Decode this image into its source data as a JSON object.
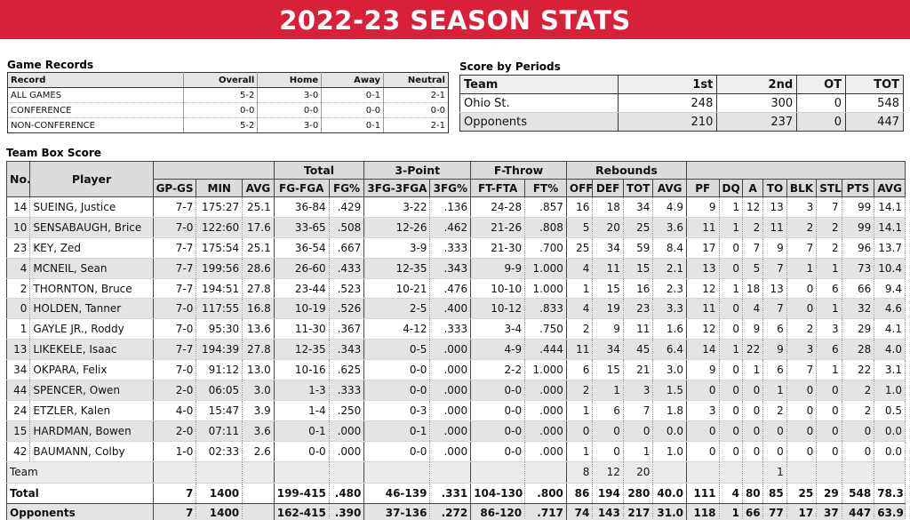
{
  "banner": {
    "title": "2022-23 SEASON STATS"
  },
  "game_records": {
    "title": "Game Records",
    "headers": [
      "Record",
      "Overall",
      "Home",
      "Away",
      "Neutral"
    ],
    "rows": [
      [
        "ALL GAMES",
        "5-2",
        "3-0",
        "0-1",
        "2-1"
      ],
      [
        "CONFERENCE",
        "0-0",
        "0-0",
        "0-0",
        "0-0"
      ],
      [
        "NON-CONFERENCE",
        "5-2",
        "3-0",
        "0-1",
        "2-1"
      ]
    ]
  },
  "score_by_periods": {
    "title": "Score by Periods",
    "headers": [
      "Team",
      "1st",
      "2nd",
      "OT",
      "TOT"
    ],
    "rows": [
      [
        "Ohio St.",
        "248",
        "300",
        "0",
        "548"
      ],
      [
        "Opponents",
        "210",
        "237",
        "0",
        "447"
      ]
    ]
  },
  "box_score": {
    "title": "Team Box Score",
    "group_headers": {
      "no": "No.",
      "player": "Player",
      "total": "Total",
      "three": "3-Point",
      "ft": "F-Throw",
      "reb": "Rebounds"
    },
    "col_headers": [
      "GP-GS",
      "MIN",
      "AVG",
      "FG-FGA",
      "FG%",
      "3FG-3FGA",
      "3FG%",
      "FT-FTA",
      "FT%",
      "OFF",
      "DEF",
      "TOT",
      "AVG",
      "PF",
      "DQ",
      "A",
      "TO",
      "BLK",
      "STL",
      "PTS",
      "AVG"
    ],
    "players": [
      [
        "14",
        "SUEING, Justice",
        "7-7",
        "175:27",
        "25.1",
        "36-84",
        ".429",
        "3-22",
        ".136",
        "24-28",
        ".857",
        "16",
        "18",
        "34",
        "4.9",
        "9",
        "1",
        "12",
        "13",
        "3",
        "7",
        "99",
        "14.1"
      ],
      [
        "10",
        "SENSABAUGH, Brice",
        "7-0",
        "122:60",
        "17.6",
        "33-65",
        ".508",
        "12-26",
        ".462",
        "21-26",
        ".808",
        "5",
        "20",
        "25",
        "3.6",
        "11",
        "1",
        "2",
        "11",
        "2",
        "2",
        "99",
        "14.1"
      ],
      [
        "23",
        "KEY, Zed",
        "7-7",
        "175:54",
        "25.1",
        "36-54",
        ".667",
        "3-9",
        ".333",
        "21-30",
        ".700",
        "25",
        "34",
        "59",
        "8.4",
        "17",
        "0",
        "7",
        "9",
        "7",
        "2",
        "96",
        "13.7"
      ],
      [
        "4",
        "MCNEIL, Sean",
        "7-7",
        "199:56",
        "28.6",
        "26-60",
        ".433",
        "12-35",
        ".343",
        "9-9",
        "1.000",
        "4",
        "11",
        "15",
        "2.1",
        "13",
        "0",
        "5",
        "7",
        "1",
        "1",
        "73",
        "10.4"
      ],
      [
        "2",
        "THORNTON, Bruce",
        "7-7",
        "194:51",
        "27.8",
        "23-44",
        ".523",
        "10-21",
        ".476",
        "10-10",
        "1.000",
        "1",
        "15",
        "16",
        "2.3",
        "12",
        "1",
        "18",
        "13",
        "0",
        "6",
        "66",
        "9.4"
      ],
      [
        "0",
        "HOLDEN, Tanner",
        "7-0",
        "117:55",
        "16.8",
        "10-19",
        ".526",
        "2-5",
        ".400",
        "10-12",
        ".833",
        "4",
        "19",
        "23",
        "3.3",
        "11",
        "0",
        "4",
        "7",
        "0",
        "1",
        "32",
        "4.6"
      ],
      [
        "1",
        "GAYLE JR., Roddy",
        "7-0",
        "95:30",
        "13.6",
        "11-30",
        ".367",
        "4-12",
        ".333",
        "3-4",
        ".750",
        "2",
        "9",
        "11",
        "1.6",
        "12",
        "0",
        "9",
        "6",
        "2",
        "3",
        "29",
        "4.1"
      ],
      [
        "13",
        "LIKEKELE, Isaac",
        "7-7",
        "194:39",
        "27.8",
        "12-35",
        ".343",
        "0-5",
        ".000",
        "4-9",
        ".444",
        "11",
        "34",
        "45",
        "6.4",
        "14",
        "1",
        "22",
        "9",
        "3",
        "6",
        "28",
        "4.0"
      ],
      [
        "34",
        "OKPARA, Felix",
        "7-0",
        "91:12",
        "13.0",
        "10-16",
        ".625",
        "0-0",
        ".000",
        "2-2",
        "1.000",
        "6",
        "15",
        "21",
        "3.0",
        "9",
        "0",
        "1",
        "6",
        "7",
        "1",
        "22",
        "3.1"
      ],
      [
        "44",
        "SPENCER, Owen",
        "2-0",
        "06:05",
        "3.0",
        "1-3",
        ".333",
        "0-0",
        ".000",
        "0-0",
        ".000",
        "2",
        "1",
        "3",
        "1.5",
        "0",
        "0",
        "0",
        "1",
        "0",
        "0",
        "2",
        "1.0"
      ],
      [
        "24",
        "ETZLER, Kalen",
        "4-0",
        "15:47",
        "3.9",
        "1-4",
        ".250",
        "0-3",
        ".000",
        "0-0",
        ".000",
        "1",
        "6",
        "7",
        "1.8",
        "3",
        "0",
        "0",
        "2",
        "0",
        "0",
        "2",
        "0.5"
      ],
      [
        "15",
        "HARDMAN, Bowen",
        "2-0",
        "07:11",
        "3.6",
        "0-1",
        ".000",
        "0-1",
        ".000",
        "0-0",
        ".000",
        "0",
        "0",
        "0",
        "0.0",
        "0",
        "0",
        "0",
        "0",
        "0",
        "0",
        "0",
        "0.0"
      ],
      [
        "42",
        "BAUMANN, Colby",
        "1-0",
        "02:33",
        "2.6",
        "0-0",
        ".000",
        "0-0",
        ".000",
        "0-0",
        ".000",
        "1",
        "0",
        "1",
        "1.0",
        "0",
        "0",
        "0",
        "0",
        "0",
        "0",
        "0",
        "0.0"
      ]
    ],
    "team_row": [
      "",
      "Team",
      "",
      "",
      "",
      "",
      "",
      "",
      "",
      "",
      "",
      "8",
      "12",
      "20",
      "",
      "",
      "",
      "",
      "1",
      "",
      "",
      "",
      ""
    ],
    "total_row": [
      "Total",
      "7",
      "1400",
      "",
      "199-415",
      ".480",
      "46-139",
      ".331",
      "104-130",
      ".800",
      "86",
      "194",
      "280",
      "40.0",
      "111",
      "4",
      "80",
      "85",
      "25",
      "29",
      "548",
      "78.3"
    ],
    "opp_row": [
      "Opponents",
      "7",
      "1400",
      "",
      "162-415",
      ".390",
      "37-136",
      ".272",
      "86-120",
      ".717",
      "74",
      "143",
      "217",
      "31.0",
      "118",
      "1",
      "66",
      "77",
      "17",
      "37",
      "447",
      "63.9"
    ]
  }
}
